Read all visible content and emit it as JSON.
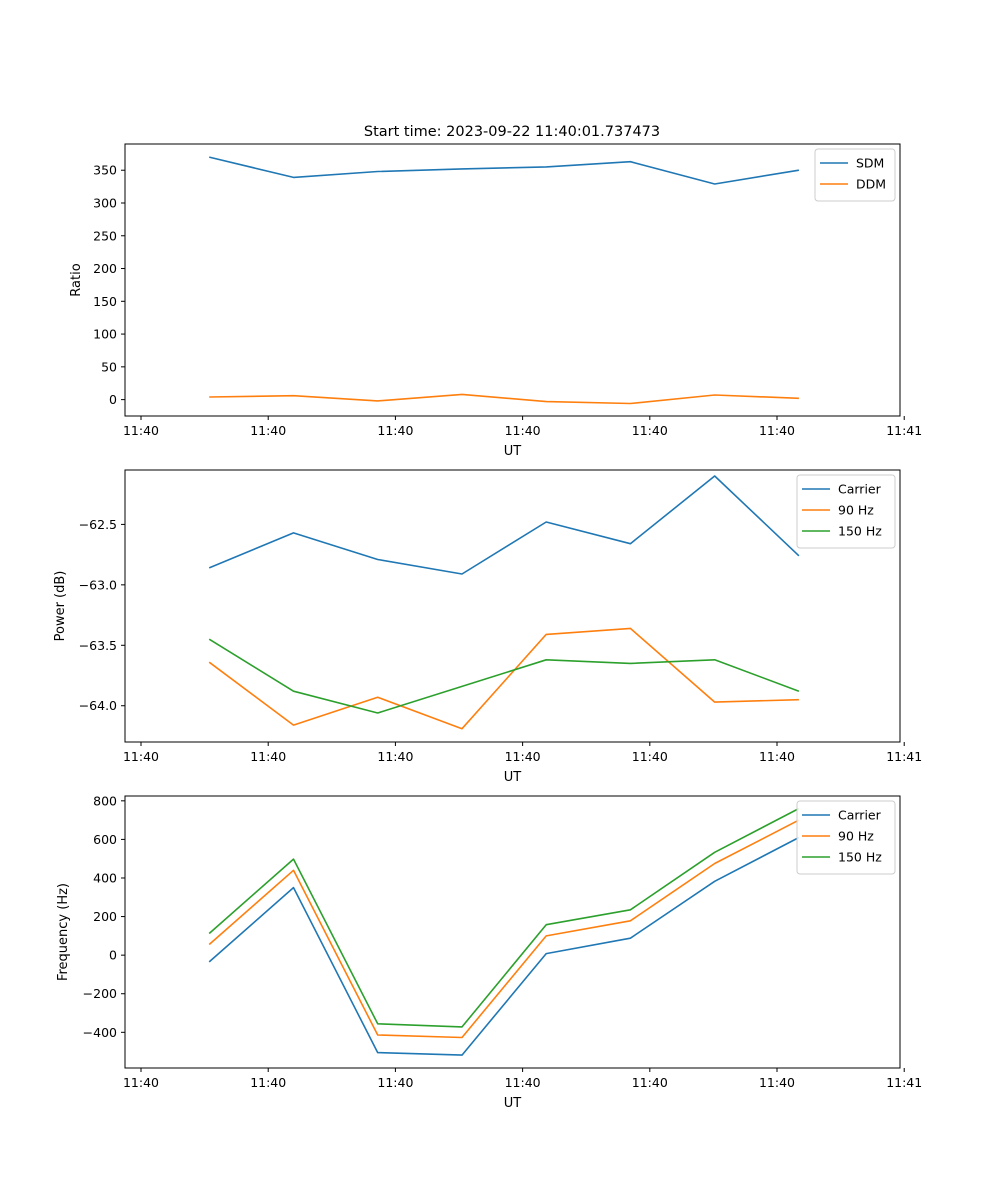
{
  "figure_title": "Start time: 2023-09-22 11:40:01.737473",
  "colors": {
    "blue": "#1f77b4",
    "orange": "#ff7f0e",
    "green": "#2ca02c"
  },
  "chart_data": [
    {
      "type": "line",
      "x": [
        1,
        2,
        3,
        4,
        5,
        6,
        7,
        8
      ],
      "xlim": [
        0,
        9.2
      ],
      "x_ticks": [
        0.19,
        1.7,
        3.21,
        4.72,
        6.23,
        7.74,
        9.25
      ],
      "x_tick_labels": [
        "11:40",
        "11:40",
        "11:40",
        "11:40",
        "11:40",
        "11:40",
        "11:41"
      ],
      "xlabel": "UT",
      "ylabel": "Ratio",
      "ylim": [
        -25,
        390
      ],
      "y_ticks": [
        0,
        50,
        100,
        150,
        200,
        250,
        300,
        350
      ],
      "y_tick_labels": [
        "0",
        "50",
        "100",
        "150",
        "200",
        "250",
        "300",
        "350"
      ],
      "legend_position": "top-right",
      "series": [
        {
          "name": "SDM",
          "color": "#1f77b4",
          "values": [
            370,
            339,
            348,
            352,
            355,
            363,
            329,
            350
          ]
        },
        {
          "name": "DDM",
          "color": "#ff7f0e",
          "values": [
            4,
            6,
            -2,
            8,
            -3,
            -6,
            7,
            2
          ]
        }
      ]
    },
    {
      "type": "line",
      "x": [
        1,
        2,
        3,
        4,
        5,
        6,
        7,
        8
      ],
      "xlim": [
        0,
        9.2
      ],
      "x_ticks": [
        0.19,
        1.7,
        3.21,
        4.72,
        6.23,
        7.74,
        9.25
      ],
      "x_tick_labels": [
        "11:40",
        "11:40",
        "11:40",
        "11:40",
        "11:40",
        "11:40",
        "11:41"
      ],
      "xlabel": "UT",
      "ylabel": "Power (dB)",
      "ylim": [
        -64.3,
        -62.05
      ],
      "y_ticks": [
        -64.0,
        -63.5,
        -63.0,
        -62.5
      ],
      "y_tick_labels": [
        "−64.0",
        "−63.5",
        "−63.0",
        "−62.5"
      ],
      "legend_position": "top-right",
      "series": [
        {
          "name": "Carrier",
          "color": "#1f77b4",
          "values": [
            -62.86,
            -62.57,
            -62.79,
            -62.91,
            -62.48,
            -62.66,
            -62.1,
            -62.76
          ]
        },
        {
          "name": "90 Hz",
          "color": "#ff7f0e",
          "values": [
            -63.64,
            -64.16,
            -63.93,
            -64.19,
            -63.41,
            -63.36,
            -63.97,
            -63.95
          ]
        },
        {
          "name": "150 Hz",
          "color": "#2ca02c",
          "values": [
            -63.45,
            -63.88,
            -64.06,
            -63.84,
            -63.62,
            -63.65,
            -63.62,
            -63.88
          ]
        }
      ]
    },
    {
      "type": "line",
      "x": [
        1,
        2,
        3,
        4,
        5,
        6,
        7,
        8
      ],
      "xlim": [
        0,
        9.2
      ],
      "x_ticks": [
        0.19,
        1.7,
        3.21,
        4.72,
        6.23,
        7.74,
        9.25
      ],
      "x_tick_labels": [
        "11:40",
        "11:40",
        "11:40",
        "11:40",
        "11:40",
        "11:40",
        "11:41"
      ],
      "xlabel": "UT",
      "ylabel": "Frequency (Hz)",
      "ylim": [
        -585,
        825
      ],
      "y_ticks": [
        -400,
        -200,
        0,
        200,
        400,
        600,
        800
      ],
      "y_tick_labels": [
        "−400",
        "−200",
        "0",
        "200",
        "400",
        "600",
        "800"
      ],
      "legend_position": "top-right",
      "series": [
        {
          "name": "Carrier",
          "color": "#1f77b4",
          "values": [
            -35,
            350,
            -505,
            -518,
            8,
            88,
            383,
            610
          ]
        },
        {
          "name": "90 Hz",
          "color": "#ff7f0e",
          "values": [
            55,
            440,
            -414,
            -427,
            100,
            178,
            475,
            700
          ]
        },
        {
          "name": "150 Hz",
          "color": "#2ca02c",
          "values": [
            112,
            498,
            -356,
            -372,
            158,
            235,
            533,
            760
          ]
        }
      ]
    }
  ]
}
